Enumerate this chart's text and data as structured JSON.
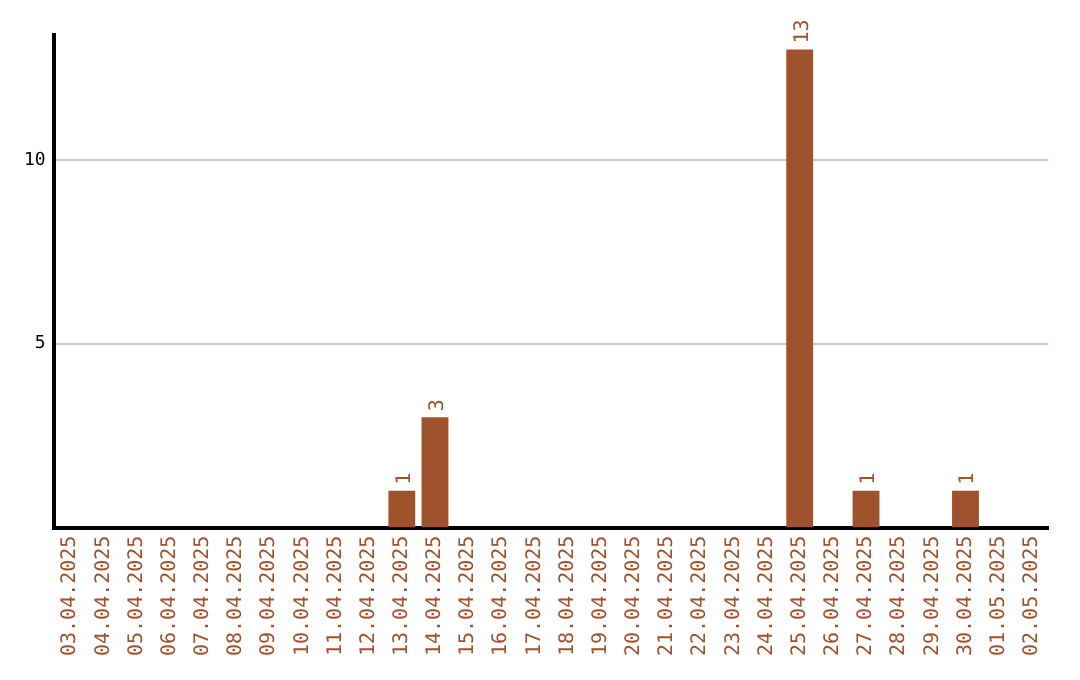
{
  "chart_data": {
    "type": "bar",
    "categories": [
      "03.04.2025",
      "04.04.2025",
      "05.04.2025",
      "06.04.2025",
      "07.04.2025",
      "08.04.2025",
      "09.04.2025",
      "10.04.2025",
      "11.04.2025",
      "12.04.2025",
      "13.04.2025",
      "14.04.2025",
      "15.04.2025",
      "16.04.2025",
      "17.04.2025",
      "18.04.2025",
      "19.04.2025",
      "20.04.2025",
      "21.04.2025",
      "22.04.2025",
      "23.04.2025",
      "24.04.2025",
      "25.04.2025",
      "26.04.2025",
      "27.04.2025",
      "28.04.2025",
      "29.04.2025",
      "30.04.2025",
      "01.05.2025",
      "02.05.2025"
    ],
    "values": [
      0,
      0,
      0,
      0,
      0,
      0,
      0,
      0,
      0,
      0,
      1,
      3,
      0,
      0,
      0,
      0,
      0,
      0,
      0,
      0,
      0,
      0,
      13,
      0,
      1,
      0,
      0,
      1,
      0,
      0
    ],
    "value_labels": [
      null,
      null,
      null,
      null,
      null,
      null,
      null,
      null,
      null,
      null,
      "1",
      "3",
      null,
      null,
      null,
      null,
      null,
      null,
      null,
      null,
      null,
      null,
      "13",
      null,
      "1",
      null,
      null,
      "1",
      null,
      null
    ],
    "color": "#a0522d",
    "ylim": [
      0,
      13.4
    ],
    "yticks": [
      5,
      10
    ],
    "grid": "y",
    "legend": false
  }
}
